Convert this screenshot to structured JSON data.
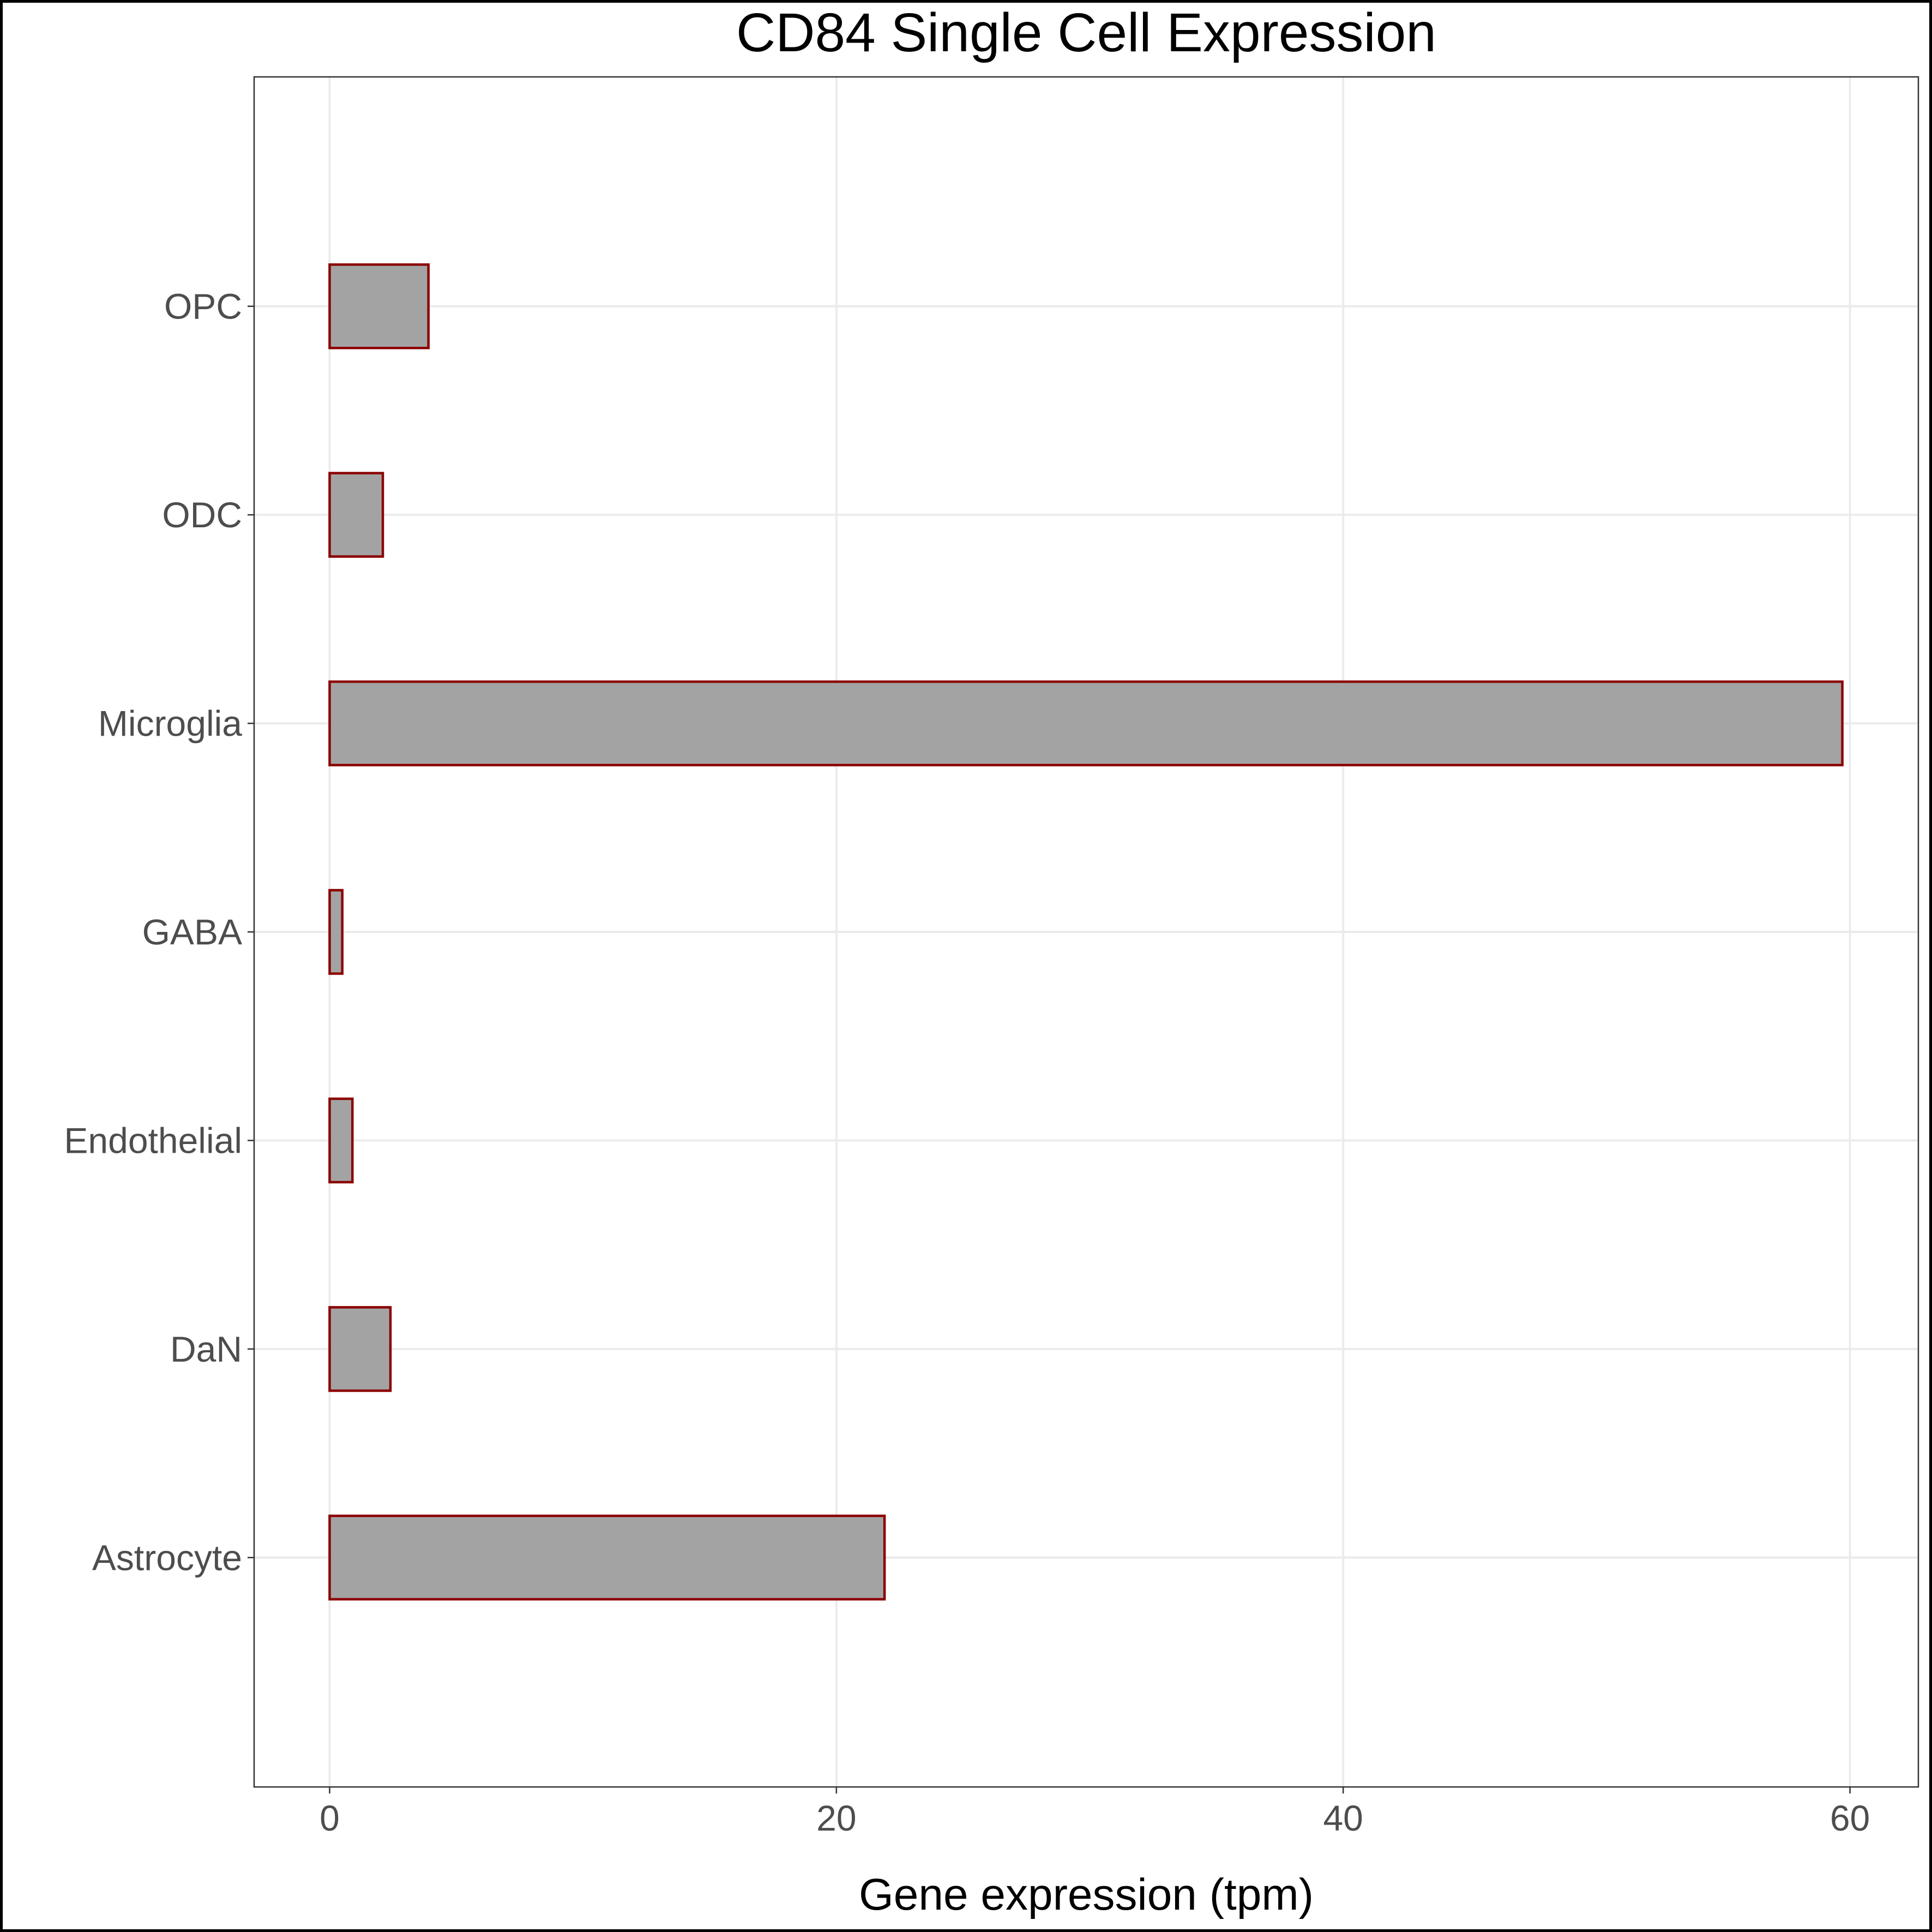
{
  "chart_data": {
    "type": "bar",
    "orientation": "horizontal",
    "title": "CD84 Single Cell Expression",
    "xlabel": "Gene expression (tpm)",
    "ylabel": "",
    "categories": [
      "Astrocyte",
      "DaN",
      "Endothelial",
      "GABA",
      "Microglia",
      "ODC",
      "OPC"
    ],
    "values": [
      21.9,
      2.4,
      0.9,
      0.5,
      59.7,
      2.1,
      3.9
    ],
    "xlim": [
      -2.98,
      62.7
    ],
    "xticks": [
      0,
      20,
      40,
      60
    ],
    "grid": true,
    "legend": "none",
    "bar_fill": "#a3a3a3",
    "bar_outline": "#8b0000"
  }
}
